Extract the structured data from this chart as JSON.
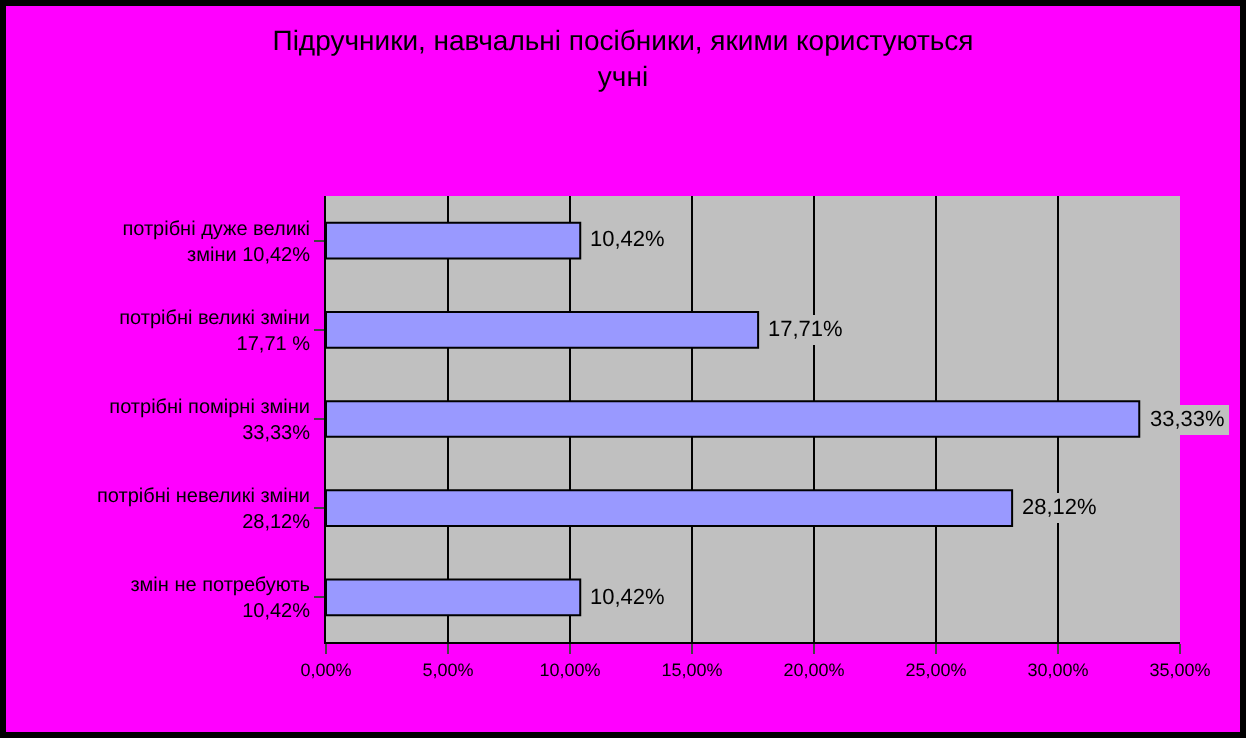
{
  "chart_data": {
    "type": "bar",
    "orientation": "horizontal",
    "title": "Підручники, навчальні посібники, якими користуються\nучні",
    "categories": [
      "потрібні дуже великі\nзміни 10,42%",
      "потрібні великі зміни\n17,71 %",
      "потрібні помірні зміни\n33,33%",
      "потрібні невеликі зміни\n28,12%",
      "змін не потребують\n10,42%"
    ],
    "values": [
      10.42,
      17.71,
      33.33,
      28.12,
      10.42
    ],
    "value_labels": [
      "10,42%",
      "17,71%",
      "33,33%",
      "28,12%",
      "10,42%"
    ],
    "color": "#9999ff",
    "xlim": [
      0,
      35
    ],
    "xticks": [
      {
        "value": 0,
        "label": "0,00%"
      },
      {
        "value": 5,
        "label": "5,00%"
      },
      {
        "value": 10,
        "label": "10,00%"
      },
      {
        "value": 15,
        "label": "15,00%"
      },
      {
        "value": 20,
        "label": "20,00%"
      },
      {
        "value": 25,
        "label": "25,00%"
      },
      {
        "value": 30,
        "label": "30,00%"
      },
      {
        "value": 35,
        "label": "35,00%"
      }
    ],
    "grid": "x"
  }
}
